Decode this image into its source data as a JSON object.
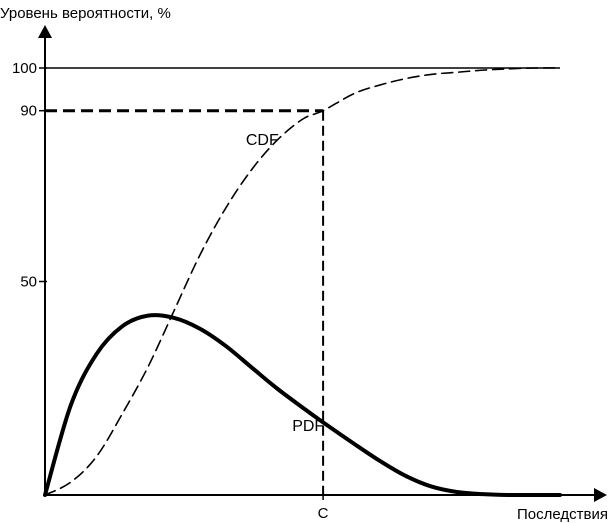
{
  "chart_data": {
    "type": "line",
    "title": "",
    "ylabel": "Уровень вероятности, %",
    "xlabel": "Последствия",
    "ylim": [
      0,
      110
    ],
    "xlim": [
      0,
      10.5
    ],
    "grid": false,
    "legend": "none",
    "y_ticks": [
      {
        "value": 50,
        "label": "50"
      },
      {
        "value": 90,
        "label": "90"
      },
      {
        "value": 100,
        "label": "100"
      }
    ],
    "x_ticks": [
      {
        "value": 5.4,
        "label": "C"
      }
    ],
    "reference_lines": {
      "hundred_level": 100,
      "ninety_level": 90,
      "c_value": 5.4
    },
    "series": [
      {
        "name": "CDF",
        "style": "dashed",
        "x": [
          0,
          0.5,
          1,
          1.5,
          2,
          2.5,
          3,
          3.5,
          4,
          4.5,
          5,
          5.4,
          6,
          6.5,
          7,
          7.5,
          8,
          8.5,
          9,
          9.5,
          10
        ],
        "values": [
          0,
          3,
          9,
          19,
          30,
          43,
          56,
          67,
          76,
          83,
          88,
          90,
          94,
          96,
          97.5,
          98.5,
          99,
          99.5,
          99.8,
          100,
          100
        ]
      },
      {
        "name": "PDF",
        "style": "solid",
        "x": [
          0,
          0.5,
          1,
          1.5,
          2,
          2.5,
          3,
          3.5,
          4,
          4.5,
          5,
          5.4,
          6,
          6.5,
          7,
          7.5,
          8,
          8.5,
          9,
          9.5,
          10
        ],
        "values": [
          0,
          21,
          33,
          39.5,
          42,
          41.5,
          39,
          35,
          30,
          25,
          20.5,
          17,
          12,
          8,
          4.5,
          2,
          0.7,
          0.2,
          0,
          0,
          0
        ]
      }
    ],
    "series_label_positions": {
      "CDF": {
        "x": 3.9,
        "y": 82
      },
      "PDF": {
        "x": 4.8,
        "y": 15
      }
    },
    "colors": {
      "line": "#000000",
      "background": "#ffffff"
    }
  }
}
